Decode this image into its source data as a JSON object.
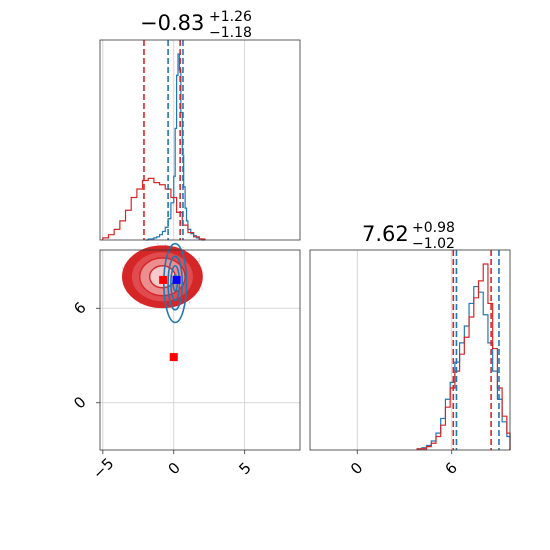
{
  "chart_data": [
    {
      "type": "histogram",
      "panel": "top-left",
      "title": {
        "value": "−0.83",
        "plus": "+1.26",
        "minus": "−1.18"
      },
      "xlim": [
        -5.2,
        8.9
      ],
      "grid": true,
      "series": [
        {
          "color": "#1f77b4",
          "bin_edges": [
            -2.0,
            -1.8,
            -1.6,
            -1.4,
            -1.2,
            -1.0,
            -0.8,
            -0.6,
            -0.4,
            -0.2,
            0.0,
            0.1,
            0.2,
            0.3,
            0.4,
            0.5,
            0.6,
            0.7,
            0.8,
            0.9,
            1.0,
            1.2,
            1.4,
            1.6,
            1.8,
            2.0,
            2.2
          ],
          "heights": [
            0,
            1,
            1,
            2,
            3,
            5,
            8,
            12,
            20,
            35,
            60,
            105,
            155,
            175,
            160,
            120,
            80,
            50,
            30,
            18,
            10,
            6,
            4,
            2,
            1,
            0
          ]
        },
        {
          "color": "#d62728",
          "bin_edges": [
            -5.0,
            -4.6,
            -4.2,
            -3.8,
            -3.4,
            -3.0,
            -2.6,
            -2.2,
            -1.8,
            -1.4,
            -1.0,
            -0.6,
            -0.2,
            0.2,
            0.6,
            1.0,
            1.4,
            1.8,
            2.2
          ],
          "heights": [
            2,
            5,
            10,
            18,
            28,
            40,
            48,
            56,
            58,
            54,
            52,
            48,
            40,
            26,
            14,
            7,
            3,
            1
          ]
        }
      ],
      "vlines": [
        {
          "x": -2.1,
          "color": "#d62728"
        },
        {
          "x": -0.4,
          "color": "#1f77b4"
        },
        {
          "x": 0.45,
          "color": "#d62728"
        },
        {
          "x": 0.65,
          "color": "#1f77b4"
        }
      ]
    },
    {
      "type": "contour",
      "panel": "bottom-left",
      "xlim": [
        -5.2,
        8.9
      ],
      "ylim": [
        -3.0,
        9.7
      ],
      "xticks": [
        "−5",
        "0",
        "5"
      ],
      "yticks": [
        "0",
        "6"
      ],
      "grid": true,
      "contours": [
        {
          "color": "#d62728",
          "cx": -0.8,
          "cy": 8.0,
          "rx": [
            0.9,
            1.6,
            2.2,
            2.8
          ],
          "ry": [
            0.7,
            1.2,
            1.6,
            1.95
          ]
        },
        {
          "color": "#1f77b4",
          "cx": 0.1,
          "cy": 7.6,
          "rx": [
            0.15,
            0.3,
            0.5,
            0.8
          ],
          "ry": [
            0.5,
            1.1,
            1.7,
            2.5
          ]
        }
      ],
      "markers": [
        {
          "x": -0.75,
          "y": 7.8,
          "color": "#ff0000"
        },
        {
          "x": 0.0,
          "y": 2.9,
          "color": "#ff0000"
        },
        {
          "x": 0.2,
          "y": 7.8,
          "color": "#0000ff"
        }
      ]
    },
    {
      "type": "histogram",
      "panel": "bottom-right",
      "title": {
        "value": "7.62",
        "plus": "+0.98",
        "minus": "−1.02"
      },
      "xlim": [
        -3.0,
        9.7
      ],
      "xticks": [
        "0",
        "6"
      ],
      "grid": true,
      "series": [
        {
          "color": "#1f77b4",
          "bin_edges": [
            3.8,
            4.1,
            4.4,
            4.7,
            5.0,
            5.3,
            5.6,
            5.9,
            6.2,
            6.5,
            6.8,
            7.1,
            7.4,
            7.7,
            8.0,
            8.3,
            8.6,
            8.9,
            9.2,
            9.5,
            9.7
          ],
          "heights": [
            1,
            2,
            4,
            8,
            15,
            28,
            45,
            60,
            78,
            95,
            110,
            130,
            145,
            140,
            120,
            95,
            70,
            45,
            25,
            12
          ]
        },
        {
          "color": "#d62728",
          "bin_edges": [
            3.8,
            4.1,
            4.4,
            4.7,
            5.0,
            5.3,
            5.6,
            5.9,
            6.2,
            6.5,
            6.8,
            7.1,
            7.4,
            7.7,
            8.0,
            8.3,
            8.6,
            8.9,
            9.2,
            9.5,
            9.7
          ],
          "heights": [
            1,
            1,
            3,
            6,
            12,
            22,
            38,
            55,
            70,
            85,
            100,
            118,
            135,
            150,
            165,
            130,
            90,
            55,
            30,
            15
          ]
        }
      ],
      "vlines": [
        {
          "x": 6.1,
          "color": "#d62728"
        },
        {
          "x": 6.3,
          "color": "#1f77b4"
        },
        {
          "x": 8.5,
          "color": "#d62728"
        },
        {
          "x": 9.0,
          "color": "#1f77b4"
        }
      ]
    }
  ]
}
